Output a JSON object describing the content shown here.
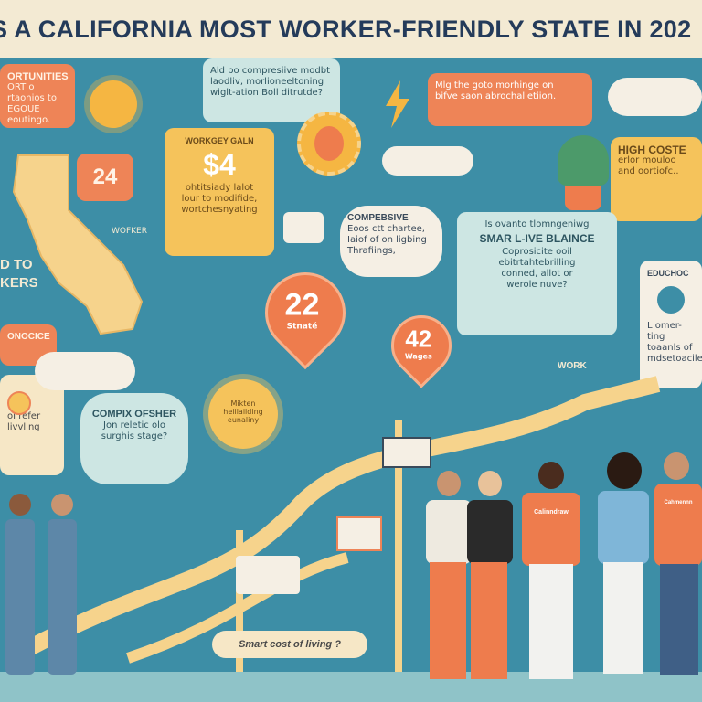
{
  "header": {
    "title": "S A CALIFORNIA MOST WORKER-FRIENDLY STATE   IN 202"
  },
  "left_top": {
    "lines": [
      "ORTUNITIES",
      "ORT o rtaonios to",
      "EGOUE eoutingo."
    ]
  },
  "badge_24": "24",
  "california_label": "WOFKER",
  "left_mid": {
    "lines": [
      "D TO",
      "KERS"
    ]
  },
  "left_lower": {
    "label": "ONOCICE"
  },
  "left_lowest": {
    "lines": [
      "oI refer",
      "livvling"
    ]
  },
  "bubble_top_center": {
    "lines": [
      "Ald bo compresiive modbt",
      "laodliv, morlioneeltoning",
      "wiglt-ation Boll ditrutde?"
    ]
  },
  "bubble_wages": {
    "title": "WORKGEY GALN",
    "big": "$4",
    "lines": [
      "ohtitsiady lalot",
      "lour to modifide,",
      "wortchesnyating"
    ]
  },
  "bubble_top_right": {
    "lines": [
      "Mlg the goto morhinge on",
      "bifve saon abrochalletiion."
    ]
  },
  "bubble_high_cost": {
    "lines": [
      "HIGH COSTE",
      "erlor mouloo",
      "and oortiofc.."
    ]
  },
  "bubble_comp": {
    "title": "COMPEBSIVE",
    "lines": [
      "Eoos ctt chartee,",
      "Iaiof of on ligbing",
      "Thrafiings,"
    ]
  },
  "bubble_smart": {
    "lines": [
      "Is ovanto tlomngeniwg",
      "SMAR L-IVE BLAINCE",
      "Coprosicite ooil",
      "ebitrtahtebrilling",
      "conned, allot or",
      "werole nuve?"
    ]
  },
  "bubble_education": {
    "title": "EDUCHOC",
    "lines": [
      "L omer-ting",
      "toaanls of",
      "mdsetoacilen"
    ]
  },
  "pin_22": {
    "value": "22",
    "label": "Stnaté"
  },
  "pin_42": {
    "value": "42",
    "label": "Wages"
  },
  "sun_label": "Mikten heiilailding eunaliny",
  "bubble_complex": {
    "title": "COMPIX OFSHER",
    "lines": [
      "Jon reletic olo",
      "surghis stage?"
    ]
  },
  "bubble_bottom": "Smart cost of living ?",
  "work_label": "WORK",
  "shirt_text": "Calinndraw",
  "shirt_text_2": "Cahmennn",
  "colors": {
    "accent_orange": "#ee8457",
    "cream": "#f6e7c6",
    "teal_bg": "#3d8ea6",
    "yellow": "#f5c35b"
  }
}
